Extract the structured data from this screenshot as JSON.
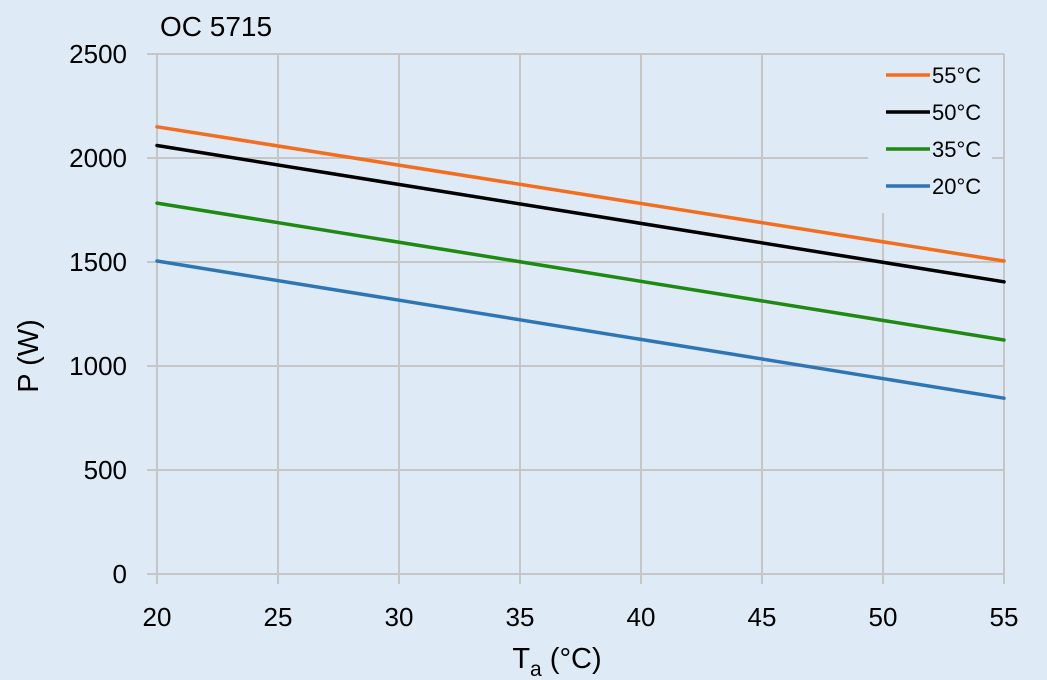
{
  "chart_data": {
    "type": "line",
    "title": "OC 5715",
    "xlabel": {
      "main": "T",
      "sub": "a",
      "suffix": " (°C)"
    },
    "ylabel": "P (W)",
    "xlim": [
      20,
      55
    ],
    "ylim": [
      0,
      2500
    ],
    "xticks": [
      20,
      25,
      30,
      35,
      40,
      45,
      50,
      55
    ],
    "yticks": [
      0,
      500,
      1000,
      1500,
      2000,
      2500
    ],
    "grid": true,
    "legend_position": "top-right",
    "series": [
      {
        "name": "55°C",
        "color": "#f26d1d",
        "x": [
          20,
          55
        ],
        "y": [
          2150,
          1505
        ]
      },
      {
        "name": "50°C",
        "color": "#000000",
        "x": [
          20,
          55
        ],
        "y": [
          2060,
          1405
        ]
      },
      {
        "name": "35°C",
        "color": "#1e8a12",
        "x": [
          20,
          55
        ],
        "y": [
          1783,
          1125
        ]
      },
      {
        "name": "20°C",
        "color": "#2e75b6",
        "x": [
          20,
          55
        ],
        "y": [
          1505,
          845
        ]
      }
    ]
  }
}
